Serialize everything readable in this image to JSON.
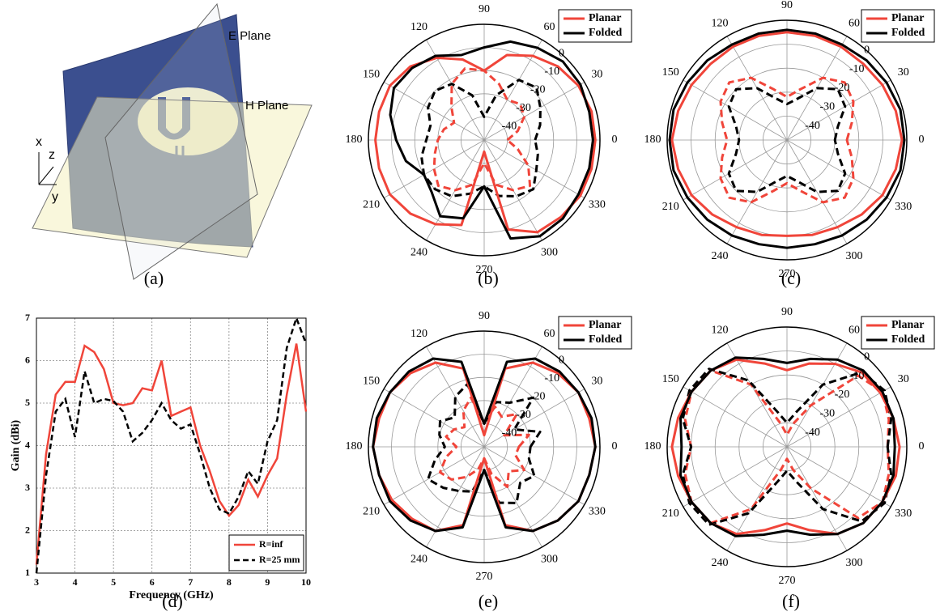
{
  "diagram": {
    "label": "(a)",
    "e_plane": "E Plane",
    "h_plane": "H Plane",
    "axes": [
      "x",
      "z",
      "y"
    ]
  },
  "chart_data": [
    {
      "type": "polar",
      "label": "(b)",
      "theta": [
        0,
        15,
        30,
        45,
        60,
        75,
        90,
        105,
        120,
        135,
        150,
        165,
        180,
        195,
        210,
        225,
        240,
        255,
        270,
        285,
        300,
        315,
        330,
        345
      ],
      "thetaticks": [
        0,
        30,
        60,
        90,
        120,
        150,
        180,
        210,
        240,
        270,
        300,
        330
      ],
      "rlim": [
        -50,
        0
      ],
      "rticks": [
        0,
        -10,
        -20,
        -30,
        -40
      ],
      "series": [
        {
          "name": "Planar",
          "color": "#f0453a",
          "values": [
            -2,
            -2,
            -3,
            -5,
            -8,
            -12,
            -20,
            -14,
            -9,
            -5,
            -3,
            -3,
            -3,
            -3,
            -3,
            -5,
            -8,
            -12,
            -45,
            -10,
            -4,
            -3,
            -2,
            -2
          ],
          "values_dashed": [
            -40,
            -35,
            -30,
            -28,
            -30,
            -25,
            -20,
            -18,
            -22,
            -30,
            -35,
            -32,
            -30,
            -28,
            -25,
            -22,
            -25,
            -30,
            -40,
            -30,
            -25,
            -22,
            -28,
            -35
          ]
        },
        {
          "name": "Folded",
          "color": "#000000",
          "values": [
            -3,
            -3,
            -2,
            -2,
            -4,
            -6,
            -10,
            -12,
            -8,
            -6,
            -5,
            -8,
            -12,
            -15,
            -20,
            -18,
            -12,
            -15,
            -30,
            -6,
            -2,
            -2,
            -3,
            -3
          ],
          "values_dashed": [
            -28,
            -25,
            -22,
            -18,
            -20,
            -30,
            -40,
            -30,
            -22,
            -20,
            -22,
            -26,
            -25,
            -22,
            -20,
            -20,
            -22,
            -26,
            -30,
            -25,
            -22,
            -20,
            -24,
            -26
          ]
        }
      ]
    },
    {
      "type": "polar",
      "label": "(c)",
      "theta": [
        0,
        15,
        30,
        45,
        60,
        75,
        90,
        105,
        120,
        135,
        150,
        165,
        180,
        195,
        210,
        225,
        240,
        255,
        270,
        285,
        300,
        315,
        330,
        345
      ],
      "thetaticks": [
        0,
        30,
        60,
        90,
        120,
        150,
        180,
        210,
        240,
        270,
        300,
        330
      ],
      "rlim": [
        -50,
        0
      ],
      "rticks": [
        0,
        -10,
        -20,
        -30,
        -40
      ],
      "series": [
        {
          "name": "Planar",
          "color": "#f0453a",
          "values": [
            -2,
            -3,
            -4,
            -5,
            -5,
            -5,
            -5,
            -5,
            -5,
            -5,
            -4,
            -3,
            -2,
            -3,
            -4,
            -6,
            -8,
            -9,
            -10,
            -9,
            -8,
            -6,
            -4,
            -3
          ],
          "values_dashed": [
            -25,
            -22,
            -18,
            -16,
            -20,
            -28,
            -32,
            -28,
            -20,
            -16,
            -18,
            -22,
            -25,
            -22,
            -18,
            -16,
            -20,
            -28,
            -32,
            -28,
            -20,
            -16,
            -18,
            -22
          ]
        },
        {
          "name": "Folded",
          "color": "#000000",
          "values": [
            -1,
            -1,
            -2,
            -3,
            -4,
            -4,
            -4,
            -4,
            -4,
            -3,
            -2,
            -1,
            -1,
            -1,
            -2,
            -3,
            -4,
            -5,
            -5,
            -5,
            -4,
            -3,
            -2,
            -1
          ],
          "values_dashed": [
            -30,
            -28,
            -22,
            -20,
            -25,
            -32,
            -35,
            -32,
            -25,
            -20,
            -22,
            -28,
            -30,
            -28,
            -22,
            -20,
            -25,
            -32,
            -35,
            -32,
            -25,
            -20,
            -22,
            -28
          ]
        }
      ]
    },
    {
      "type": "line",
      "label": "(d)",
      "xlabel": "Frequency (GHz)",
      "ylabel": "Gain (dBi)",
      "x": [
        3,
        3.25,
        3.5,
        3.75,
        4,
        4.25,
        4.5,
        4.75,
        5,
        5.25,
        5.5,
        5.75,
        6,
        6.25,
        6.5,
        6.75,
        7,
        7.25,
        7.5,
        7.75,
        8,
        8.25,
        8.5,
        8.75,
        9,
        9.25,
        9.5,
        9.75,
        10
      ],
      "xlim": [
        3,
        10
      ],
      "xticks": [
        3,
        4,
        5,
        6,
        7,
        8,
        9,
        10
      ],
      "ylim": [
        1,
        7
      ],
      "yticks": [
        1,
        2,
        3,
        4,
        5,
        6,
        7
      ],
      "grid": true,
      "legend": "lower-right",
      "series": [
        {
          "name": "R=inf",
          "color": "#f0453a",
          "dashed": false,
          "values": [
            1.2,
            3.8,
            5.2,
            5.5,
            5.5,
            6.35,
            6.2,
            5.8,
            5.0,
            4.95,
            5.0,
            5.35,
            5.3,
            6.0,
            4.7,
            4.8,
            4.9,
            4.0,
            3.4,
            2.7,
            2.35,
            2.6,
            3.2,
            2.8,
            3.3,
            3.7,
            5.2,
            6.4,
            4.8
          ]
        },
        {
          "name": "R=25 mm",
          "color": "#000000",
          "dashed": true,
          "values": [
            1.0,
            3.3,
            4.8,
            5.1,
            4.2,
            5.75,
            5.0,
            5.1,
            5.05,
            4.8,
            4.1,
            4.3,
            4.6,
            5.0,
            4.6,
            4.4,
            4.5,
            3.8,
            3.0,
            2.5,
            2.4,
            2.8,
            3.4,
            3.1,
            4.1,
            4.6,
            6.3,
            7.0,
            6.4
          ]
        }
      ]
    },
    {
      "type": "polar",
      "label": "(e)",
      "theta": [
        0,
        15,
        30,
        45,
        60,
        75,
        90,
        105,
        120,
        135,
        150,
        165,
        180,
        195,
        210,
        225,
        240,
        255,
        270,
        285,
        300,
        315,
        330,
        345
      ],
      "thetaticks": [
        0,
        30,
        60,
        90,
        120,
        150,
        180,
        210,
        240,
        270,
        300,
        330
      ],
      "rlim": [
        -50,
        0
      ],
      "rticks": [
        0,
        -10,
        -20,
        -30,
        -40
      ],
      "series": [
        {
          "name": "Planar",
          "color": "#f0453a",
          "values": [
            -2,
            -3,
            -3,
            -5,
            -8,
            -15,
            -45,
            -15,
            -8,
            -5,
            -3,
            -3,
            -2,
            -3,
            -4,
            -6,
            -8,
            -15,
            -45,
            -15,
            -8,
            -5,
            -3,
            -3
          ],
          "values_dashed": [
            -35,
            -30,
            -40,
            -30,
            -35,
            -32,
            -40,
            -28,
            -32,
            -38,
            -35,
            -33,
            -38,
            -33,
            -28,
            -30,
            -35,
            -40,
            -45,
            -38,
            -30,
            -35,
            -30,
            -36
          ]
        },
        {
          "name": "Folded",
          "color": "#000000",
          "values": [
            -2,
            -2,
            -3,
            -4,
            -6,
            -12,
            -40,
            -12,
            -6,
            -4,
            -3,
            -2,
            -2,
            -3,
            -3,
            -5,
            -8,
            -14,
            -40,
            -14,
            -8,
            -5,
            -3,
            -3
          ],
          "values_dashed": [
            -30,
            -25,
            -35,
            -20,
            -28,
            -30,
            -40,
            -22,
            -25,
            -32,
            -28,
            -30,
            -33,
            -28,
            -22,
            -25,
            -28,
            -30,
            -40,
            -25,
            -22,
            -28,
            -25,
            -30
          ]
        }
      ]
    },
    {
      "type": "polar",
      "label": "(f)",
      "theta": [
        0,
        15,
        30,
        45,
        60,
        75,
        90,
        105,
        120,
        135,
        150,
        165,
        180,
        195,
        210,
        225,
        240,
        255,
        270,
        285,
        300,
        315,
        330,
        345
      ],
      "thetaticks": [
        0,
        30,
        60,
        90,
        120,
        150,
        180,
        210,
        240,
        270,
        300,
        330
      ],
      "rlim": [
        -50,
        0
      ],
      "rticks": [
        0,
        -10,
        -20,
        -30,
        -40
      ],
      "series": [
        {
          "name": "Planar",
          "color": "#f0453a",
          "values": [
            -3,
            -4,
            -5,
            -6,
            -10,
            -14,
            -18,
            -14,
            -8,
            -5,
            -4,
            -3,
            -2,
            -3,
            -4,
            -5,
            -8,
            -14,
            -18,
            -14,
            -8,
            -5,
            -4,
            -3
          ],
          "values_dashed": [
            -8,
            -6,
            -4,
            -8,
            -30,
            -40,
            -45,
            -40,
            -20,
            -5,
            -4,
            -6,
            -10,
            -6,
            -4,
            -5,
            -20,
            -40,
            -45,
            -40,
            -30,
            -8,
            -4,
            -6
          ]
        },
        {
          "name": "Folded",
          "color": "#000000",
          "values": [
            -5,
            -4,
            -4,
            -5,
            -8,
            -12,
            -15,
            -12,
            -7,
            -5,
            -4,
            -4,
            -6,
            -4,
            -4,
            -5,
            -7,
            -12,
            -15,
            -12,
            -8,
            -5,
            -4,
            -4
          ],
          "values_dashed": [
            -8,
            -5,
            -3,
            -6,
            -20,
            -35,
            -40,
            -35,
            -18,
            -4,
            -3,
            -5,
            -10,
            -5,
            -3,
            -4,
            -18,
            -35,
            -40,
            -35,
            -20,
            -6,
            -3,
            -5
          ]
        }
      ]
    }
  ]
}
